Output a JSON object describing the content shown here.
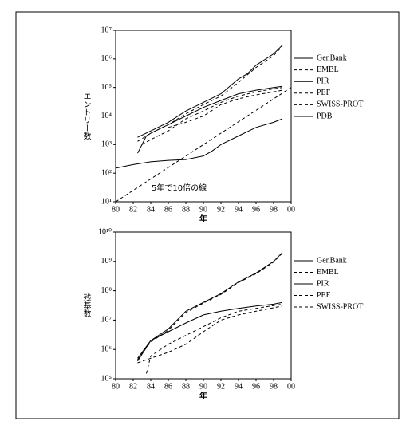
{
  "chart_data": [
    {
      "type": "line",
      "log_y": true,
      "y_label": "エントリー数",
      "x_label": "年",
      "xlim": [
        80,
        100
      ],
      "xticks": [
        80,
        82,
        84,
        86,
        88,
        90,
        92,
        94,
        96,
        98,
        {
          "value": 100,
          "label": "00"
        }
      ],
      "ylim": [
        10,
        10000000
      ],
      "yticks": [
        {
          "value": 10,
          "label": "10¹"
        },
        {
          "value": 100,
          "label": "10²"
        },
        {
          "value": 1000,
          "label": "10³"
        },
        {
          "value": 10000,
          "label": "10⁴"
        },
        {
          "value": 100000,
          "label": "10⁵"
        },
        {
          "value": 1000000,
          "label": "10⁶"
        },
        {
          "value": 10000000,
          "label": "10⁷"
        }
      ],
      "series": [
        {
          "name": "GenBank",
          "color": "#000",
          "dash": false,
          "x": [
            82.5,
            84,
            86,
            88,
            90,
            92,
            94,
            95,
            96,
            98,
            99
          ],
          "values": [
            1800,
            3000,
            6000,
            15000,
            30000,
            60000,
            200000,
            300000,
            600000,
            1500000,
            3000000
          ]
        },
        {
          "name": "EMBL",
          "color": "#000",
          "dash": true,
          "x": [
            82.5,
            84,
            86,
            88,
            90,
            92,
            94,
            96,
            98,
            99
          ],
          "values": [
            1300,
            2500,
            5000,
            12000,
            25000,
            50000,
            150000,
            500000,
            1300000,
            2800000
          ]
        },
        {
          "name": "PIR",
          "color": "#000",
          "dash": false,
          "x": [
            82.5,
            83.5,
            84,
            86,
            88,
            90,
            92,
            94,
            96,
            98,
            99
          ],
          "values": [
            500,
            2000,
            2500,
            5000,
            10000,
            20000,
            35000,
            60000,
            80000,
            100000,
            110000
          ]
        },
        {
          "name": "PEF",
          "color": "#000",
          "dash": true,
          "x": [
            83,
            84,
            86,
            88,
            90,
            92,
            94,
            96,
            98,
            99
          ],
          "values": [
            1000,
            1500,
            3000,
            8000,
            15000,
            30000,
            50000,
            70000,
            90000,
            100000
          ]
        },
        {
          "name": "SWISS-PROT",
          "color": "#000",
          "dash": true,
          "x": [
            86,
            88,
            90,
            92,
            94,
            96,
            98,
            99
          ],
          "values": [
            4000,
            6000,
            10000,
            25000,
            40000,
            55000,
            70000,
            80000
          ]
        },
        {
          "name": "PDB",
          "color": "#000",
          "dash": false,
          "x": [
            80,
            82,
            84,
            86,
            88,
            90,
            91,
            92,
            94,
            96,
            98,
            99
          ],
          "values": [
            150,
            200,
            250,
            280,
            300,
            400,
            600,
            1000,
            2000,
            4000,
            6000,
            8000
          ]
        }
      ],
      "reference_line": {
        "label": "5年で10倍の線",
        "x": [
          80,
          100
        ],
        "values": [
          10,
          100000
        ]
      }
    },
    {
      "type": "line",
      "log_y": true,
      "y_label": "残基数",
      "x_label": "年",
      "xlim": [
        80,
        100
      ],
      "xticks": [
        80,
        82,
        84,
        86,
        88,
        90,
        92,
        94,
        96,
        98,
        {
          "value": 100,
          "label": "00"
        }
      ],
      "ylim": [
        100000,
        10000000000
      ],
      "yticks": [
        {
          "value": 100000,
          "label": "10⁵"
        },
        {
          "value": 1000000,
          "label": "10⁶"
        },
        {
          "value": 10000000,
          "label": "10⁷"
        },
        {
          "value": 100000000,
          "label": "10⁸"
        },
        {
          "value": 1000000000,
          "label": "10⁹"
        },
        {
          "value": 10000000000,
          "label": "10¹⁰"
        }
      ],
      "series": [
        {
          "name": "GenBank",
          "color": "#000",
          "dash": false,
          "x": [
            82.5,
            84,
            86,
            88,
            90,
            92,
            94,
            96,
            98,
            99
          ],
          "values": [
            500000,
            2000000,
            5000000,
            20000000,
            40000000,
            80000000,
            200000000,
            400000000,
            1000000000,
            2000000000
          ]
        },
        {
          "name": "EMBL",
          "color": "#000",
          "dash": true,
          "x": [
            82.5,
            84,
            86,
            88,
            90,
            92,
            94,
            96,
            98,
            99
          ],
          "values": [
            450000,
            1800000,
            4500000,
            18000000,
            38000000,
            75000000,
            190000000,
            380000000,
            950000000,
            1900000000
          ]
        },
        {
          "name": "PIR",
          "color": "#000",
          "dash": false,
          "x": [
            82.5,
            84,
            86,
            88,
            90,
            92,
            94,
            96,
            98,
            99
          ],
          "values": [
            400000,
            2000000,
            4000000,
            8000000,
            15000000,
            20000000,
            25000000,
            30000000,
            35000000,
            40000000
          ]
        },
        {
          "name": "PEF",
          "color": "#000",
          "dash": true,
          "x": [
            83.5,
            84,
            86,
            88,
            90,
            92,
            94,
            96,
            99
          ],
          "values": [
            150000,
            600000,
            1500000,
            3000000,
            6000000,
            12000000,
            20000000,
            25000000,
            35000000
          ]
        },
        {
          "name": "SWISS-PROT",
          "color": "#000",
          "dash": true,
          "x": [
            82.5,
            84,
            86,
            88,
            90,
            92,
            94,
            96,
            99
          ],
          "values": [
            350000,
            500000,
            800000,
            1500000,
            4000000,
            10000000,
            15000000,
            20000000,
            30000000
          ]
        }
      ]
    }
  ]
}
